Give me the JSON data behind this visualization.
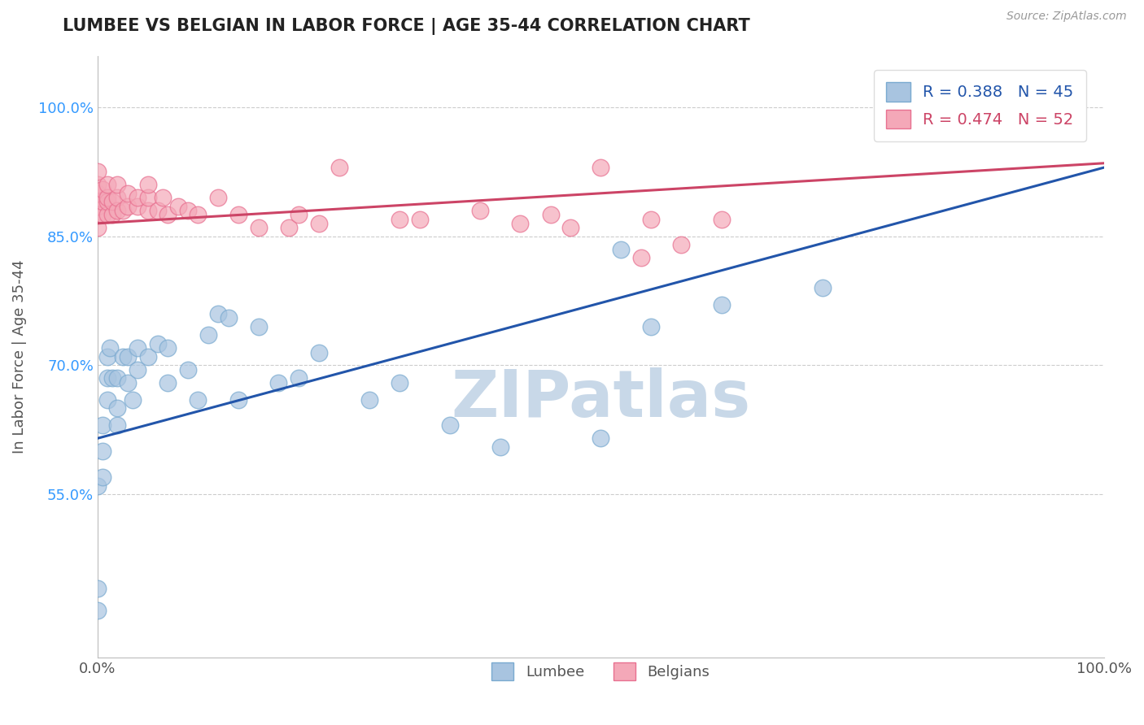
{
  "title": "LUMBEE VS BELGIAN IN LABOR FORCE | AGE 35-44 CORRELATION CHART",
  "source_text": "Source: ZipAtlas.com",
  "ylabel": "In Labor Force | Age 35-44",
  "xlim": [
    0.0,
    1.0
  ],
  "ylim": [
    0.36,
    1.06
  ],
  "yticks": [
    0.55,
    0.7,
    0.85,
    1.0
  ],
  "ytick_labels": [
    "55.0%",
    "70.0%",
    "85.0%",
    "100.0%"
  ],
  "xtick_labels": [
    "0.0%",
    "100.0%"
  ],
  "xticks": [
    0.0,
    1.0
  ],
  "lumbee_R": 0.388,
  "lumbee_N": 45,
  "belgian_R": 0.474,
  "belgian_N": 52,
  "lumbee_color": "#a8c4e0",
  "belgian_color": "#f4a8b8",
  "lumbee_edge_color": "#7aaad0",
  "belgian_edge_color": "#e87090",
  "lumbee_line_color": "#2255aa",
  "belgian_line_color": "#cc4466",
  "watermark": "ZIPatlas",
  "watermark_color": "#c8d8e8",
  "background_color": "#ffffff",
  "lumbee_points_x": [
    0.0,
    0.0,
    0.0,
    0.005,
    0.005,
    0.005,
    0.01,
    0.01,
    0.01,
    0.012,
    0.015,
    0.02,
    0.02,
    0.02,
    0.025,
    0.03,
    0.03,
    0.035,
    0.04,
    0.04,
    0.05,
    0.06,
    0.07,
    0.07,
    0.09,
    0.1,
    0.11,
    0.12,
    0.13,
    0.14,
    0.16,
    0.18,
    0.2,
    0.22,
    0.27,
    0.3,
    0.35,
    0.4,
    0.5,
    0.52,
    0.55,
    0.62,
    0.72,
    0.85,
    0.87
  ],
  "lumbee_points_y": [
    0.415,
    0.44,
    0.56,
    0.57,
    0.6,
    0.63,
    0.66,
    0.685,
    0.71,
    0.72,
    0.685,
    0.63,
    0.65,
    0.685,
    0.71,
    0.68,
    0.71,
    0.66,
    0.695,
    0.72,
    0.71,
    0.725,
    0.68,
    0.72,
    0.695,
    0.66,
    0.735,
    0.76,
    0.755,
    0.66,
    0.745,
    0.68,
    0.685,
    0.715,
    0.66,
    0.68,
    0.63,
    0.605,
    0.615,
    0.835,
    0.745,
    0.77,
    0.79,
    1.0,
    1.0
  ],
  "belgian_points_x": [
    0.0,
    0.0,
    0.0,
    0.0,
    0.0,
    0.0,
    0.0,
    0.005,
    0.005,
    0.005,
    0.01,
    0.01,
    0.01,
    0.01,
    0.015,
    0.015,
    0.02,
    0.02,
    0.02,
    0.025,
    0.03,
    0.03,
    0.04,
    0.04,
    0.05,
    0.05,
    0.05,
    0.06,
    0.065,
    0.07,
    0.08,
    0.09,
    0.1,
    0.12,
    0.14,
    0.16,
    0.19,
    0.2,
    0.22,
    0.24,
    0.3,
    0.32,
    0.38,
    0.42,
    0.45,
    0.47,
    0.5,
    0.54,
    0.55,
    0.58,
    0.62,
    0.8
  ],
  "belgian_points_y": [
    0.86,
    0.875,
    0.885,
    0.895,
    0.9,
    0.91,
    0.925,
    0.875,
    0.89,
    0.905,
    0.875,
    0.89,
    0.895,
    0.91,
    0.875,
    0.89,
    0.88,
    0.895,
    0.91,
    0.88,
    0.885,
    0.9,
    0.885,
    0.895,
    0.88,
    0.895,
    0.91,
    0.88,
    0.895,
    0.875,
    0.885,
    0.88,
    0.875,
    0.895,
    0.875,
    0.86,
    0.86,
    0.875,
    0.865,
    0.93,
    0.87,
    0.87,
    0.88,
    0.865,
    0.875,
    0.86,
    0.93,
    0.825,
    0.87,
    0.84,
    0.87,
    1.0
  ],
  "lumbee_trend_x": [
    0.0,
    1.0
  ],
  "lumbee_trend_y": [
    0.615,
    0.93
  ],
  "belgian_trend_x": [
    0.0,
    1.0
  ],
  "belgian_trend_y": [
    0.865,
    0.935
  ]
}
